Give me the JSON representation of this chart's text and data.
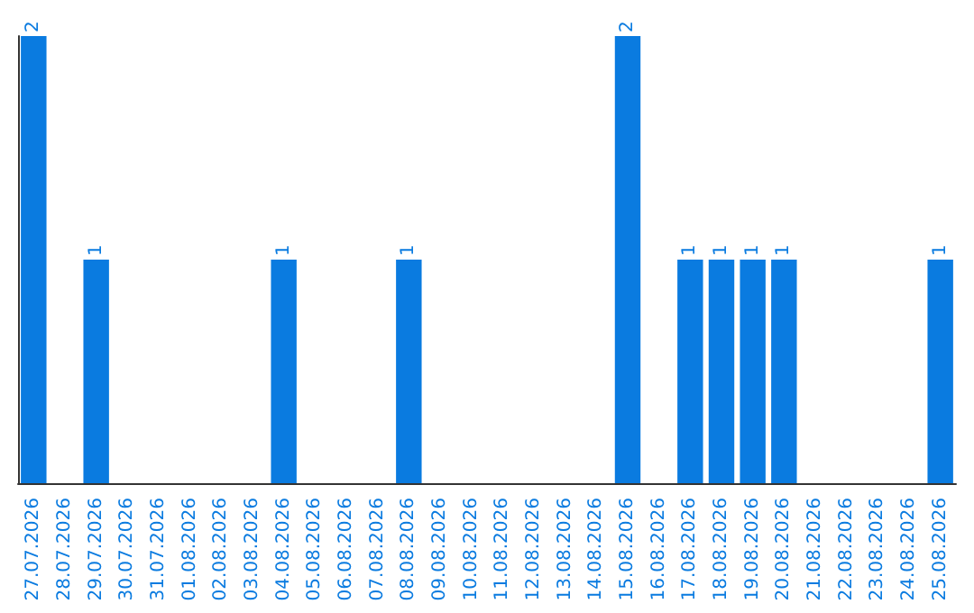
{
  "chart_data": {
    "type": "bar",
    "categories": [
      "27.07.2026",
      "28.07.2026",
      "29.07.2026",
      "30.07.2026",
      "31.07.2026",
      "01.08.2026",
      "02.08.2026",
      "03.08.2026",
      "04.08.2026",
      "05.08.2026",
      "06.08.2026",
      "07.08.2026",
      "08.08.2026",
      "09.08.2026",
      "10.08.2026",
      "11.08.2026",
      "12.08.2026",
      "13.08.2026",
      "14.08.2026",
      "15.08.2026",
      "16.08.2026",
      "17.08.2026",
      "18.08.2026",
      "19.08.2026",
      "20.08.2026",
      "21.08.2026",
      "22.08.2026",
      "23.08.2026",
      "24.08.2026",
      "25.08.2026"
    ],
    "values": [
      2,
      0,
      1,
      0,
      0,
      0,
      0,
      0,
      1,
      0,
      0,
      0,
      1,
      0,
      0,
      0,
      0,
      0,
      0,
      2,
      0,
      1,
      1,
      1,
      1,
      0,
      0,
      0,
      0,
      1
    ],
    "value_labels": [
      "2",
      null,
      "1",
      null,
      null,
      null,
      null,
      null,
      "1",
      null,
      null,
      null,
      "1",
      null,
      null,
      null,
      null,
      null,
      null,
      "2",
      null,
      "1",
      "1",
      "1",
      "1",
      null,
      null,
      null,
      null,
      "1"
    ],
    "color": "#0a7be0",
    "grid": false
  }
}
